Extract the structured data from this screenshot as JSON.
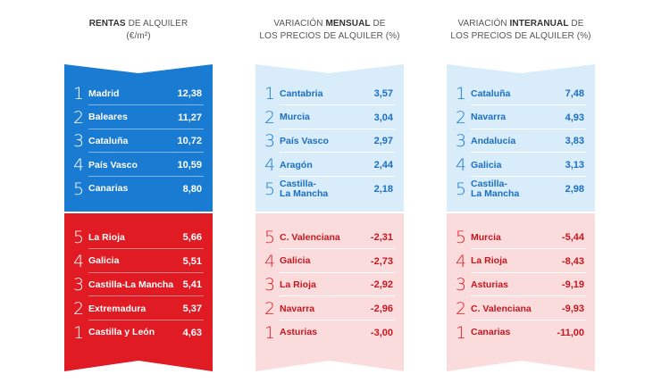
{
  "columns": [
    {
      "heading": {
        "bold_a": "RENTAS",
        "rest_a": " DE ALQUILER",
        "line2": "(€/m²)"
      },
      "style": "strong",
      "top": [
        {
          "rank": "1",
          "name": "Madrid",
          "value": "12,38"
        },
        {
          "rank": "2",
          "name": "Baleares",
          "value": "11,27"
        },
        {
          "rank": "3",
          "name": "Cataluña",
          "value": "10,72"
        },
        {
          "rank": "4",
          "name": "País Vasco",
          "value": "10,59"
        },
        {
          "rank": "5",
          "name": "Canarias",
          "value": "8,80"
        }
      ],
      "bottom": [
        {
          "rank": "5",
          "name": "La Rioja",
          "value": "5,66"
        },
        {
          "rank": "4",
          "name": "Galicia",
          "value": "5,51"
        },
        {
          "rank": "3",
          "name": "Castilla-La Mancha",
          "value": "5,41"
        },
        {
          "rank": "2",
          "name": "Extremadura",
          "value": "5,37"
        },
        {
          "rank": "1",
          "name": "Castilla y León",
          "value": "4,63"
        }
      ]
    },
    {
      "heading": {
        "pre_a": "VARIACIÓN ",
        "bold_a": "MENSUAL",
        "rest_a": " DE",
        "line2": "LOS PRECIOS DE ALQUILER (%)"
      },
      "style": "light",
      "top": [
        {
          "rank": "1",
          "name": "Cantabria",
          "value": "3,57"
        },
        {
          "rank": "2",
          "name": "Murcia",
          "value": "3,04"
        },
        {
          "rank": "3",
          "name": "País Vasco",
          "value": "2,97"
        },
        {
          "rank": "4",
          "name": "Aragón",
          "value": "2,44"
        },
        {
          "rank": "5",
          "name": "Castilla-\nLa Mancha",
          "value": "2,18"
        }
      ],
      "bottom": [
        {
          "rank": "5",
          "name": "C. Valenciana",
          "value": "-2,31"
        },
        {
          "rank": "4",
          "name": "Galicia",
          "value": "-2,73"
        },
        {
          "rank": "3",
          "name": "La Rioja",
          "value": "-2,92"
        },
        {
          "rank": "2",
          "name": "Navarra",
          "value": "-2,96"
        },
        {
          "rank": "1",
          "name": "Asturias",
          "value": "-3,00"
        }
      ]
    },
    {
      "heading": {
        "pre_a": "VARIACIÓN ",
        "bold_a": "INTERANUAL",
        "rest_a": " DE",
        "line2": "LOS PRECIOS DE ALQUILER (%)"
      },
      "style": "light",
      "top": [
        {
          "rank": "1",
          "name": "Cataluña",
          "value": "7,48"
        },
        {
          "rank": "2",
          "name": "Navarra",
          "value": "4,93"
        },
        {
          "rank": "3",
          "name": "Andalucía",
          "value": "3,83"
        },
        {
          "rank": "4",
          "name": "Galicia",
          "value": "3,13"
        },
        {
          "rank": "5",
          "name": "Castilla-\nLa Mancha",
          "value": "2,98"
        }
      ],
      "bottom": [
        {
          "rank": "5",
          "name": "Murcia",
          "value": "-5,44"
        },
        {
          "rank": "4",
          "name": "La Rioja",
          "value": "-8,43"
        },
        {
          "rank": "3",
          "name": "Asturias",
          "value": "-9,19"
        },
        {
          "rank": "2",
          "name": "C. Valenciana",
          "value": "-9,93"
        },
        {
          "rank": "1",
          "name": "Canarias",
          "value": "-11,00"
        }
      ]
    }
  ],
  "colors": {
    "strong_blue": "#1a7bd3",
    "strong_red": "#e01b24",
    "light_blue": "#d9ecfa",
    "light_red": "#fbdcdc"
  }
}
